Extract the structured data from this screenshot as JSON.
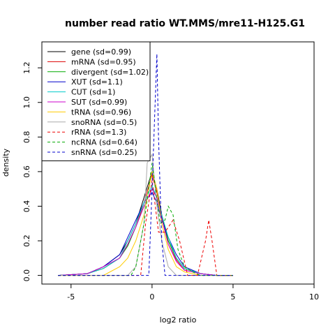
{
  "chart_data": {
    "type": "line",
    "title": "number read ratio WT.MMS/mre11-H125.G1",
    "xlabel": "log2 ratio",
    "ylabel": "density",
    "xlim": [
      -6.8,
      10
    ],
    "ylim": [
      -0.05,
      1.35
    ],
    "xticks": [
      -5,
      0,
      5,
      10
    ],
    "yticks": [
      0.0,
      0.2,
      0.4,
      0.6,
      0.8,
      1.0,
      1.2
    ],
    "xtick_labels": [
      "-5",
      "0",
      "5",
      "10"
    ],
    "ytick_labels": [
      "0.0",
      "0.2",
      "0.4",
      "0.6",
      "0.8",
      "1.0",
      "1.2"
    ],
    "grid": false,
    "legend_position": "top-left",
    "series": [
      {
        "name": "gene (sd=0.99)",
        "color": "#000000",
        "dash": "solid",
        "x": [
          -5.8,
          -4,
          -3,
          -2,
          -1.5,
          -1,
          -0.5,
          0,
          0.3,
          0.6,
          1,
          1.5,
          2,
          3,
          4,
          5
        ],
        "y": [
          0,
          0.01,
          0.05,
          0.12,
          0.2,
          0.3,
          0.45,
          0.6,
          0.5,
          0.35,
          0.2,
          0.1,
          0.04,
          0.01,
          0,
          0
        ]
      },
      {
        "name": "mRNA (sd=0.95)",
        "color": "#dd0000",
        "dash": "solid",
        "x": [
          -5.8,
          -4,
          -3,
          -2,
          -1.5,
          -1,
          -0.5,
          0,
          0.3,
          0.6,
          1,
          1.5,
          2,
          3,
          4,
          5
        ],
        "y": [
          0,
          0.01,
          0.04,
          0.1,
          0.18,
          0.28,
          0.42,
          0.58,
          0.48,
          0.33,
          0.18,
          0.09,
          0.03,
          0.01,
          0,
          0
        ]
      },
      {
        "name": "divergent (sd=1.02)",
        "color": "#00aa00",
        "dash": "solid",
        "x": [
          -5.8,
          -4,
          -3,
          -2,
          -1.5,
          -1,
          -0.5,
          0,
          0.3,
          0.6,
          1,
          1.5,
          2,
          3,
          4,
          5
        ],
        "y": [
          0,
          0.01,
          0.04,
          0.1,
          0.17,
          0.28,
          0.4,
          0.5,
          0.45,
          0.33,
          0.2,
          0.1,
          0.04,
          0.01,
          0,
          0
        ]
      },
      {
        "name": "XUT (sd=1.1)",
        "color": "#0000cc",
        "dash": "solid",
        "x": [
          -5.8,
          -4,
          -3,
          -2,
          -1.5,
          -1,
          -0.5,
          0,
          0.3,
          0.6,
          1,
          1.5,
          2,
          3,
          4,
          5
        ],
        "y": [
          0,
          0.01,
          0.05,
          0.12,
          0.22,
          0.32,
          0.42,
          0.48,
          0.42,
          0.32,
          0.22,
          0.12,
          0.05,
          0.01,
          0,
          0
        ]
      },
      {
        "name": "CUT (sd=1)",
        "color": "#00cccc",
        "dash": "solid",
        "x": [
          -5.8,
          -4,
          -3,
          -2,
          -1.5,
          -1,
          -0.5,
          0,
          0.3,
          0.6,
          1,
          1.5,
          2,
          3,
          4,
          5
        ],
        "y": [
          0,
          0.01,
          0.04,
          0.1,
          0.2,
          0.3,
          0.42,
          0.52,
          0.45,
          0.35,
          0.22,
          0.1,
          0.04,
          0.01,
          0,
          0
        ]
      },
      {
        "name": "SUT (sd=0.99)",
        "color": "#cc00cc",
        "dash": "solid",
        "x": [
          -5.8,
          -4,
          -3,
          -2,
          -1.5,
          -1,
          -0.5,
          0,
          0.3,
          0.6,
          1,
          1.5,
          2,
          3,
          4,
          5
        ],
        "y": [
          0,
          0.01,
          0.05,
          0.1,
          0.18,
          0.28,
          0.4,
          0.5,
          0.45,
          0.33,
          0.18,
          0.08,
          0.03,
          0.01,
          0,
          0
        ]
      },
      {
        "name": "tRNA (sd=0.96)",
        "color": "#ffcc00",
        "dash": "solid",
        "x": [
          -5.8,
          -3,
          -2,
          -1.5,
          -1,
          -0.5,
          0,
          0.3,
          0.6,
          1,
          1.5,
          2,
          3,
          5
        ],
        "y": [
          0,
          0,
          0.05,
          0.1,
          0.2,
          0.35,
          0.6,
          0.5,
          0.3,
          0.15,
          0.05,
          0.02,
          0,
          0
        ]
      },
      {
        "name": "snoRNA (sd=0.5)",
        "color": "#aaaaaa",
        "dash": "solid",
        "x": [
          -5.8,
          -1.5,
          -1,
          -0.5,
          -0.3,
          0,
          0.3,
          0.6,
          1,
          1.5,
          2,
          5
        ],
        "y": [
          0,
          0,
          0.05,
          0.3,
          0.65,
          0.7,
          0.4,
          0.2,
          0.05,
          0,
          0,
          0
        ]
      },
      {
        "name": "rRNA (sd=1.3)",
        "color": "#ee0000",
        "dash": "dashed",
        "x": [
          -5.8,
          -1,
          -0.7,
          -0.4,
          0,
          0.4,
          0.8,
          1.3,
          1.7,
          2.2,
          2.8,
          3.3,
          3.5,
          3.7,
          4,
          4.5,
          5
        ],
        "y": [
          0,
          0,
          0,
          0.3,
          0.55,
          0.25,
          0.25,
          0.32,
          0.2,
          0,
          0,
          0.2,
          0.32,
          0.2,
          0,
          0,
          0
        ]
      },
      {
        "name": "ncRNA (sd=0.64)",
        "color": "#00aa00",
        "dash": "dashed",
        "x": [
          -5.8,
          -2,
          -1.3,
          -1,
          -0.5,
          0,
          0.5,
          0.8,
          1,
          1.3,
          1.6,
          2,
          2.5,
          3,
          5
        ],
        "y": [
          0,
          0,
          0,
          0.05,
          0.3,
          0.65,
          0.3,
          0.32,
          0.4,
          0.35,
          0.15,
          0.05,
          0.02,
          0,
          0
        ]
      },
      {
        "name": "snRNA (sd=0.25)",
        "color": "#0000cc",
        "dash": "dashed",
        "x": [
          -5.8,
          -0.8,
          -0.5,
          -0.2,
          0,
          0.3,
          0.4,
          0.6,
          0.8,
          1,
          5
        ],
        "y": [
          0,
          0,
          0,
          0,
          0.5,
          1.28,
          0.8,
          0.2,
          0,
          0,
          0
        ]
      }
    ]
  }
}
